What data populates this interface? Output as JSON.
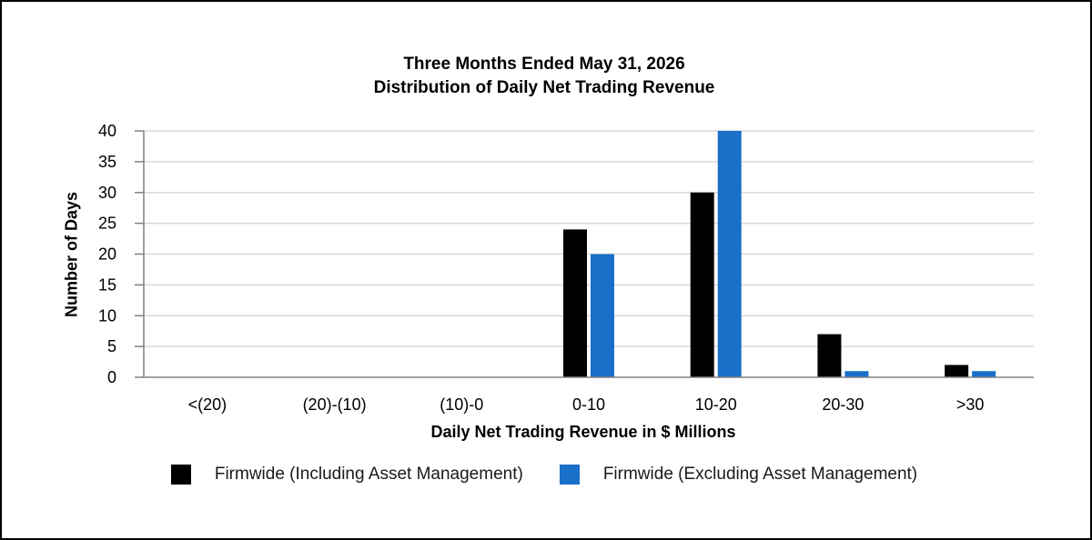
{
  "chart_data": {
    "type": "bar",
    "title": "Three Months Ended May 31, 2026",
    "subtitle": "Distribution of Daily Net Trading Revenue",
    "xlabel": "Daily Net Trading Revenue in $ Millions",
    "ylabel": "Number of Days",
    "categories": [
      "<(20)",
      "(20)-(10)",
      "(10)-0",
      "0-10",
      "10-20",
      "20-30",
      ">30"
    ],
    "series": [
      {
        "name": "Firmwide (Including Asset Management)",
        "color": "#000000",
        "values": [
          0,
          0,
          0,
          24,
          30,
          7,
          2
        ]
      },
      {
        "name": "Firmwide (Excluding Asset Management)",
        "color": "#1a6fc9",
        "values": [
          0,
          0,
          0,
          20,
          40,
          1,
          1
        ]
      }
    ],
    "ylim": [
      0,
      40
    ],
    "yticks": [
      0,
      5,
      10,
      15,
      20,
      25,
      30,
      35,
      40
    ],
    "grid": true,
    "legend_position": "bottom"
  }
}
